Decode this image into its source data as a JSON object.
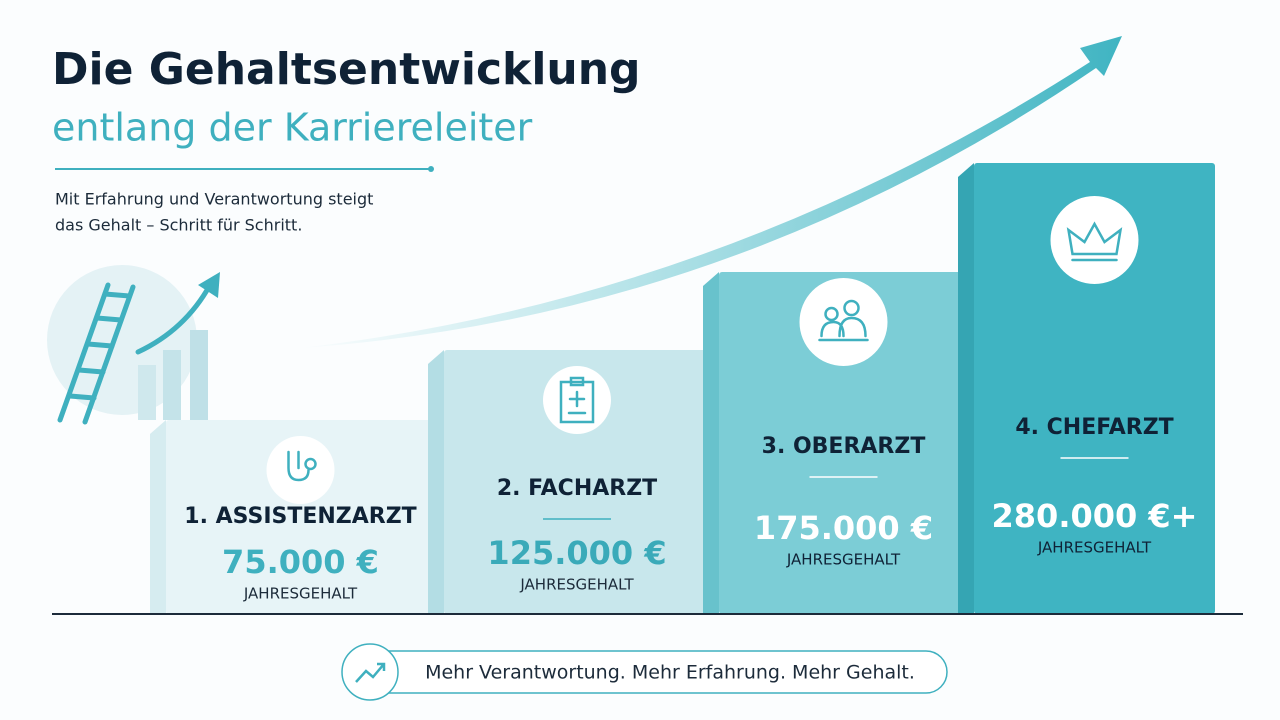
{
  "header": {
    "title": "Die Gehaltsentwicklung",
    "subtitle": "entlang der Karriereleiter",
    "intro": [
      "Mit Erfahrung und Verantwortung steigt",
      "das Gehalt – Schritt für Schritt."
    ]
  },
  "steps": [
    {
      "title": "1. ASSISTENZARZT",
      "salary": "75.000 €",
      "caption": "JAHRESGEHALT"
    },
    {
      "title": "2. FACHARZT",
      "salary": "125.000 €",
      "caption": "JAHRESGEHALT"
    },
    {
      "title": "3. OBERARZT",
      "salary": "175.000 €",
      "caption": "JAHRESGEHALT"
    },
    {
      "title": "4. CHEFARZT",
      "salary": "280.000 €+",
      "caption": "JAHRESGEHALT"
    }
  ],
  "footer": "Mehr Verantwortung. Mehr Erfahrung. Mehr Gehalt."
}
